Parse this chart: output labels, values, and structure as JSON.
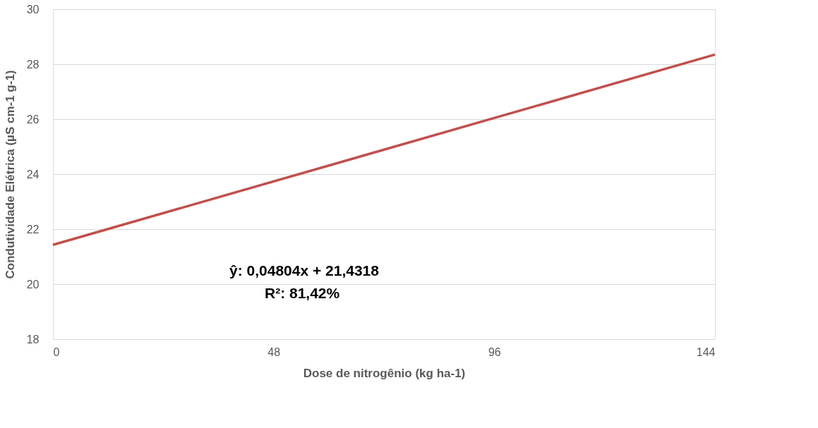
{
  "chart_data": {
    "type": "line",
    "xlabel": "Dose de nitrogênio (kg ha-1)",
    "ylabel": "Condutividade Elétrica (µS cm-1 g-1)",
    "x": [
      0,
      144
    ],
    "series": [
      {
        "color": "#c0504d",
        "values": [
          21.43,
          28.35
        ]
      }
    ],
    "xlim": [
      0,
      144
    ],
    "xticks": [
      0,
      48,
      96,
      144
    ],
    "ylim": [
      18,
      30
    ],
    "yticks": [
      18,
      20,
      22,
      24,
      26,
      28,
      30
    ],
    "grid": "y",
    "marker": "none",
    "line_style": "solid",
    "annotations": [
      "ŷ:  0,04804x + 21,4318",
      "R²: 81,42%"
    ]
  }
}
